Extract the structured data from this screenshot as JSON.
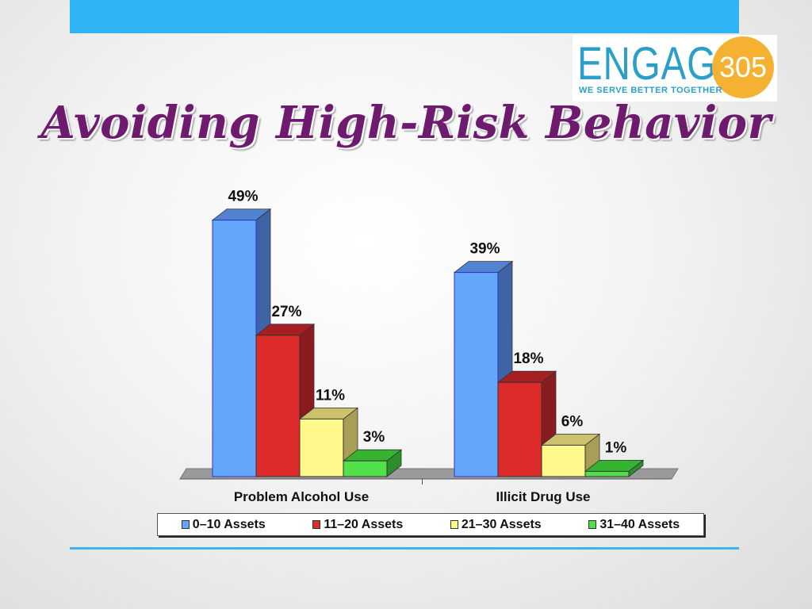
{
  "slide": {
    "title": "Avoiding High-Risk Behavior"
  },
  "logo": {
    "word": "ENGAGE",
    "number": "305",
    "tagline": "WE SERVE BETTER TOGETHER"
  },
  "colors": {
    "top_bar": "#2fb5f5",
    "title": "#6d1a6f",
    "logo_blue": "#2b9fc8",
    "logo_orange": "#f5b232"
  },
  "chart_data": {
    "type": "bar",
    "title": "",
    "categories": [
      "Problem Alcohol Use",
      "Illicit Drug Use"
    ],
    "series": [
      {
        "name": "0–10 Assets",
        "values": [
          49,
          39
        ],
        "labels": [
          "49%",
          "39%"
        ],
        "color": "#64a6fc",
        "side": "#3e64a6",
        "top": "#5283d0"
      },
      {
        "name": "11–20 Assets",
        "values": [
          27,
          18
        ],
        "labels": [
          "27%",
          "18%"
        ],
        "color": "#dd2b2c",
        "side": "#8a1b1e",
        "top": "#a81f22"
      },
      {
        "name": "21–30 Assets",
        "values": [
          11,
          6
        ],
        "labels": [
          "11%",
          "6%"
        ],
        "color": "#fff88a",
        "side": "#a89e58",
        "top": "#ccc26e"
      },
      {
        "name": "31–40 Assets",
        "values": [
          3,
          1
        ],
        "labels": [
          "3%",
          "1%"
        ],
        "color": "#51e04a",
        "side": "#2c8f2a",
        "top": "#37b332"
      }
    ],
    "ylim": [
      0,
      50
    ],
    "xlabel": "",
    "ylabel": "",
    "grid": false,
    "legend": "bottom"
  }
}
